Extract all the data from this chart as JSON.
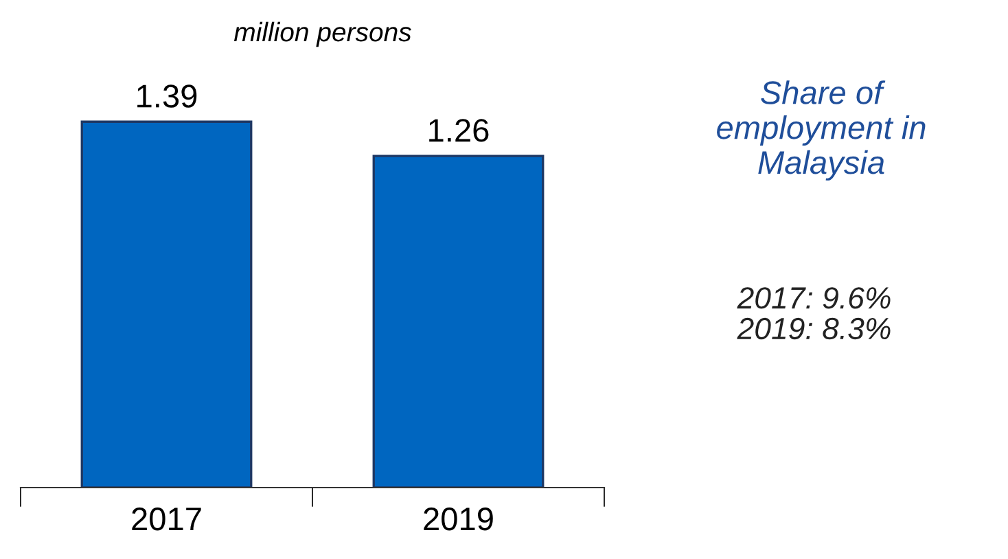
{
  "chart_data": {
    "type": "bar",
    "title": "million persons",
    "categories": [
      "2017",
      "2019"
    ],
    "values": [
      1.39,
      1.26
    ],
    "color": "#0066c0",
    "data_labels": true,
    "grid": false,
    "annotations": [
      "Share of employment in Malaysia",
      "2017: 9.6%\n2019: 8.3%"
    ]
  }
}
